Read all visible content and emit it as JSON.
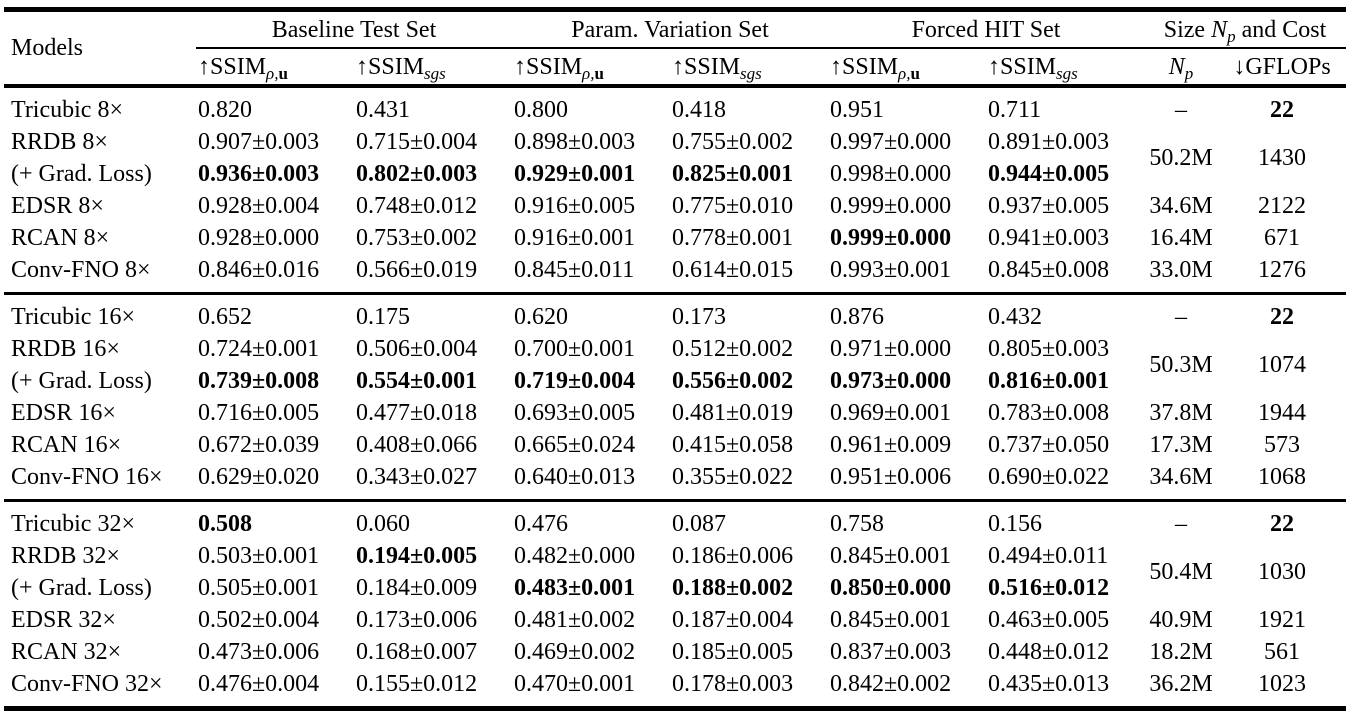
{
  "page": {
    "background": "#ffffff",
    "text_color": "#000000"
  },
  "table": {
    "header": {
      "models_label": "Models",
      "groups": [
        {
          "pre": "Baseline Test Set",
          "var": "",
          "sub": "",
          "post": ""
        },
        {
          "pre": "Param. Variation Set",
          "var": "",
          "sub": "",
          "post": ""
        },
        {
          "pre": "Forced HIT Set",
          "var": "",
          "sub": "",
          "post": ""
        },
        {
          "pre": "Size ",
          "var": "N",
          "sub": "p",
          "post": " and Cost"
        }
      ],
      "metric_subheaders": [
        {
          "arrow": "↑",
          "base": "SSIM",
          "sub_i": "ρ,",
          "sub_b": "u"
        },
        {
          "arrow": "↑",
          "base": "SSIM",
          "sub_i": "sgs",
          "sub_b": ""
        },
        {
          "arrow": "↑",
          "base": "SSIM",
          "sub_i": "ρ,",
          "sub_b": "u"
        },
        {
          "arrow": "↑",
          "base": "SSIM",
          "sub_i": "sgs",
          "sub_b": ""
        },
        {
          "arrow": "↑",
          "base": "SSIM",
          "sub_i": "ρ,",
          "sub_b": "u"
        },
        {
          "arrow": "↑",
          "base": "SSIM",
          "sub_i": "sgs",
          "sub_b": ""
        }
      ],
      "np_subheader": {
        "var": "N",
        "sub": "p"
      },
      "gflops_subheader": {
        "arrow": "↓",
        "label": "GFLOPs"
      }
    },
    "body": {
      "groups": [
        {
          "rows": [
            {
              "model": "Tricubic 8×",
              "v": [
                "0.820",
                "0.431",
                "0.800",
                "0.418",
                "0.951",
                "0.711"
              ],
              "b": [
                0,
                0,
                0,
                0,
                0,
                0
              ],
              "np": "–",
              "np_span": 1,
              "gflops": "22",
              "gflops_bold": true
            },
            {
              "model": "RRDB 8×",
              "v": [
                "0.907±0.003",
                "0.715±0.004",
                "0.898±0.003",
                "0.755±0.002",
                "0.997±0.000",
                "0.891±0.003"
              ],
              "b": [
                0,
                0,
                0,
                0,
                0,
                0
              ],
              "np": "50.2M",
              "np_span": 2,
              "gflops": "1430",
              "gflops_bold": false
            },
            {
              "model": "(+ Grad. Loss)",
              "v": [
                "0.936±0.003",
                "0.802±0.003",
                "0.929±0.001",
                "0.825±0.001",
                "0.998±0.000",
                "0.944±0.005"
              ],
              "b": [
                1,
                1,
                1,
                1,
                0,
                1
              ],
              "np": null,
              "np_span": 0,
              "gflops": null,
              "gflops_bold": false
            },
            {
              "model": "EDSR 8×",
              "v": [
                "0.928±0.004",
                "0.748±0.012",
                "0.916±0.005",
                "0.775±0.010",
                "0.999±0.000",
                "0.937±0.005"
              ],
              "b": [
                0,
                0,
                0,
                0,
                0,
                0
              ],
              "np": "34.6M",
              "np_span": 1,
              "gflops": "2122",
              "gflops_bold": false
            },
            {
              "model": "RCAN 8×",
              "v": [
                "0.928±0.000",
                "0.753±0.002",
                "0.916±0.001",
                "0.778±0.001",
                "0.999±0.000",
                "0.941±0.003"
              ],
              "b": [
                0,
                0,
                0,
                0,
                1,
                0
              ],
              "np": "16.4M",
              "np_span": 1,
              "gflops": "671",
              "gflops_bold": false
            },
            {
              "model": "Conv-FNO 8×",
              "v": [
                "0.846±0.016",
                "0.566±0.019",
                "0.845±0.011",
                "0.614±0.015",
                "0.993±0.001",
                "0.845±0.008"
              ],
              "b": [
                0,
                0,
                0,
                0,
                0,
                0
              ],
              "np": "33.0M",
              "np_span": 1,
              "gflops": "1276",
              "gflops_bold": false
            }
          ]
        },
        {
          "rows": [
            {
              "model": "Tricubic 16×",
              "v": [
                "0.652",
                "0.175",
                "0.620",
                "0.173",
                "0.876",
                "0.432"
              ],
              "b": [
                0,
                0,
                0,
                0,
                0,
                0
              ],
              "np": "–",
              "np_span": 1,
              "gflops": "22",
              "gflops_bold": true
            },
            {
              "model": "RRDB 16×",
              "v": [
                "0.724±0.001",
                "0.506±0.004",
                "0.700±0.001",
                "0.512±0.002",
                "0.971±0.000",
                "0.805±0.003"
              ],
              "b": [
                0,
                0,
                0,
                0,
                0,
                0
              ],
              "np": "50.3M",
              "np_span": 2,
              "gflops": "1074",
              "gflops_bold": false
            },
            {
              "model": "(+ Grad. Loss)",
              "v": [
                "0.739±0.008",
                "0.554±0.001",
                "0.719±0.004",
                "0.556±0.002",
                "0.973±0.000",
                "0.816±0.001"
              ],
              "b": [
                1,
                1,
                1,
                1,
                1,
                1
              ],
              "np": null,
              "np_span": 0,
              "gflops": null,
              "gflops_bold": false
            },
            {
              "model": "EDSR 16×",
              "v": [
                "0.716±0.005",
                "0.477±0.018",
                "0.693±0.005",
                "0.481±0.019",
                "0.969±0.001",
                "0.783±0.008"
              ],
              "b": [
                0,
                0,
                0,
                0,
                0,
                0
              ],
              "np": "37.8M",
              "np_span": 1,
              "gflops": "1944",
              "gflops_bold": false
            },
            {
              "model": "RCAN 16×",
              "v": [
                "0.672±0.039",
                "0.408±0.066",
                "0.665±0.024",
                "0.415±0.058",
                "0.961±0.009",
                "0.737±0.050"
              ],
              "b": [
                0,
                0,
                0,
                0,
                0,
                0
              ],
              "np": "17.3M",
              "np_span": 1,
              "gflops": "573",
              "gflops_bold": false
            },
            {
              "model": "Conv-FNO 16×",
              "v": [
                "0.629±0.020",
                "0.343±0.027",
                "0.640±0.013",
                "0.355±0.022",
                "0.951±0.006",
                "0.690±0.022"
              ],
              "b": [
                0,
                0,
                0,
                0,
                0,
                0
              ],
              "np": "34.6M",
              "np_span": 1,
              "gflops": "1068",
              "gflops_bold": false
            }
          ]
        },
        {
          "rows": [
            {
              "model": "Tricubic 32×",
              "v": [
                "0.508",
                "0.060",
                "0.476",
                "0.087",
                "0.758",
                "0.156"
              ],
              "b": [
                1,
                0,
                0,
                0,
                0,
                0
              ],
              "np": "–",
              "np_span": 1,
              "gflops": "22",
              "gflops_bold": true
            },
            {
              "model": "RRDB 32×",
              "v": [
                "0.503±0.001",
                "0.194±0.005",
                "0.482±0.000",
                "0.186±0.006",
                "0.845±0.001",
                "0.494±0.011"
              ],
              "b": [
                0,
                1,
                0,
                0,
                0,
                0
              ],
              "np": "50.4M",
              "np_span": 2,
              "gflops": "1030",
              "gflops_bold": false
            },
            {
              "model": "(+ Grad. Loss)",
              "v": [
                "0.505±0.001",
                "0.184±0.009",
                "0.483±0.001",
                "0.188±0.002",
                "0.850±0.000",
                "0.516±0.012"
              ],
              "b": [
                0,
                0,
                1,
                1,
                1,
                1
              ],
              "np": null,
              "np_span": 0,
              "gflops": null,
              "gflops_bold": false
            },
            {
              "model": "EDSR 32×",
              "v": [
                "0.502±0.004",
                "0.173±0.006",
                "0.481±0.002",
                "0.187±0.004",
                "0.845±0.001",
                "0.463±0.005"
              ],
              "b": [
                0,
                0,
                0,
                0,
                0,
                0
              ],
              "np": "40.9M",
              "np_span": 1,
              "gflops": "1921",
              "gflops_bold": false
            },
            {
              "model": "RCAN 32×",
              "v": [
                "0.473±0.006",
                "0.168±0.007",
                "0.469±0.002",
                "0.185±0.005",
                "0.837±0.003",
                "0.448±0.012"
              ],
              "b": [
                0,
                0,
                0,
                0,
                0,
                0
              ],
              "np": "18.2M",
              "np_span": 1,
              "gflops": "561",
              "gflops_bold": false
            },
            {
              "model": "Conv-FNO 32×",
              "v": [
                "0.476±0.004",
                "0.155±0.012",
                "0.470±0.001",
                "0.178±0.003",
                "0.842±0.002",
                "0.435±0.013"
              ],
              "b": [
                0,
                0,
                0,
                0,
                0,
                0
              ],
              "np": "36.2M",
              "np_span": 1,
              "gflops": "1023",
              "gflops_bold": false
            }
          ]
        }
      ]
    }
  }
}
